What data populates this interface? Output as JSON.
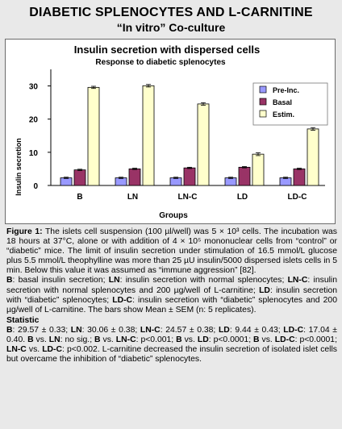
{
  "header": {
    "line1": "DIABETIC SPLENOCYTES AND L-CARNITINE",
    "line2": "“In vitro”  Co-culture"
  },
  "chart_data": {
    "type": "bar",
    "title": "Insulin secretion with dispersed cells",
    "subtitle": "Response to diabetic splenocytes",
    "xlabel": "Groups",
    "ylabel": "Insulin secretion",
    "ylim": [
      0,
      35
    ],
    "yticks": [
      0,
      10,
      20,
      30
    ],
    "categories": [
      "B",
      "LN",
      "LN-C",
      "LD",
      "LD-C"
    ],
    "series": [
      {
        "name": "Pre-Inc.",
        "color": "#9999ff",
        "values": [
          2.3,
          2.3,
          2.3,
          2.3,
          2.3
        ],
        "errors": [
          0.2,
          0.2,
          0.2,
          0.2,
          0.2
        ]
      },
      {
        "name": "Basal",
        "color": "#993366",
        "values": [
          4.7,
          5.0,
          5.3,
          5.5,
          5.0
        ],
        "errors": [
          0.2,
          0.2,
          0.2,
          0.2,
          0.2
        ]
      },
      {
        "name": "Estim.",
        "color": "#ffffcc",
        "values": [
          29.57,
          30.06,
          24.57,
          9.44,
          17.04
        ],
        "errors": [
          0.33,
          0.38,
          0.38,
          0.43,
          0.4
        ]
      }
    ],
    "legend_position": "top-right",
    "grid": false
  },
  "caption": {
    "fig_label": "Figure 1:",
    "fig_text": " The islets cell suspension (100 µl/well) was 5 × 10³ cells. The incubation was 18 hours at 37°C, alone or with addition of 4 × 10⁵ mononuclear cells from “control” or “diabetic” mice. The limit of insulin secretion under stimulation of 16.5 mmol/L glucose plus 5.5 mmol/L theophylline was more than 25 µU insulin/5000 dispersed islets cells in 5 min. Below this value it was assumed as “immune aggression” [82].",
    "defs": [
      {
        "term": "B",
        "text": ": basal insulin secretion; "
      },
      {
        "term": "LN",
        "text": ": insulin secretion with normal splenocytes; "
      },
      {
        "term": "LN-C",
        "text": ": insulin secretion with normal splenocytes and 200 µg/well of L-carnitine; "
      },
      {
        "term": "LD",
        "text": ": insulin secretion with “diabetic” splenocytes; "
      },
      {
        "term": "LD-C",
        "text": ": insulin secretion with “diabetic” splenocytes and 200 µg/well of L-carnitine. The bars show Mean ± SEM (n: 5 replicates)."
      }
    ],
    "stat_title": "Statistic",
    "stats": [
      {
        "term": "B",
        "text": ": 29.57 ± 0.33; "
      },
      {
        "term": "LN",
        "text": ": 30.06 ± 0.38; "
      },
      {
        "term": "LN-C",
        "text": ": 24.57 ± 0.38; "
      },
      {
        "term": "LD",
        "text": ": 9.44 ± 0.43; "
      },
      {
        "term": "LD-C",
        "text": ": 17.04 ± 0.40. "
      },
      {
        "term": "B",
        "text": " vs. "
      },
      {
        "term": "LN",
        "text": ": no sig.; "
      },
      {
        "term": "B",
        "text": " vs. "
      },
      {
        "term": "LN-C",
        "text": ": p<0.001; "
      },
      {
        "term": "B",
        "text": " vs. "
      },
      {
        "term": "LD",
        "text": ": p<0.0001; "
      },
      {
        "term": "B",
        "text": " vs. "
      },
      {
        "term": "LD-C",
        "text": ": p<0.0001; "
      },
      {
        "term": "LN-C",
        "text": " vs. "
      },
      {
        "term": "LD-C",
        "text": ": p<0.002. L-carnitine decreased the insulin secretion of isolated islet cells but overcame the inhibition of “diabetic” splenocytes."
      }
    ]
  }
}
